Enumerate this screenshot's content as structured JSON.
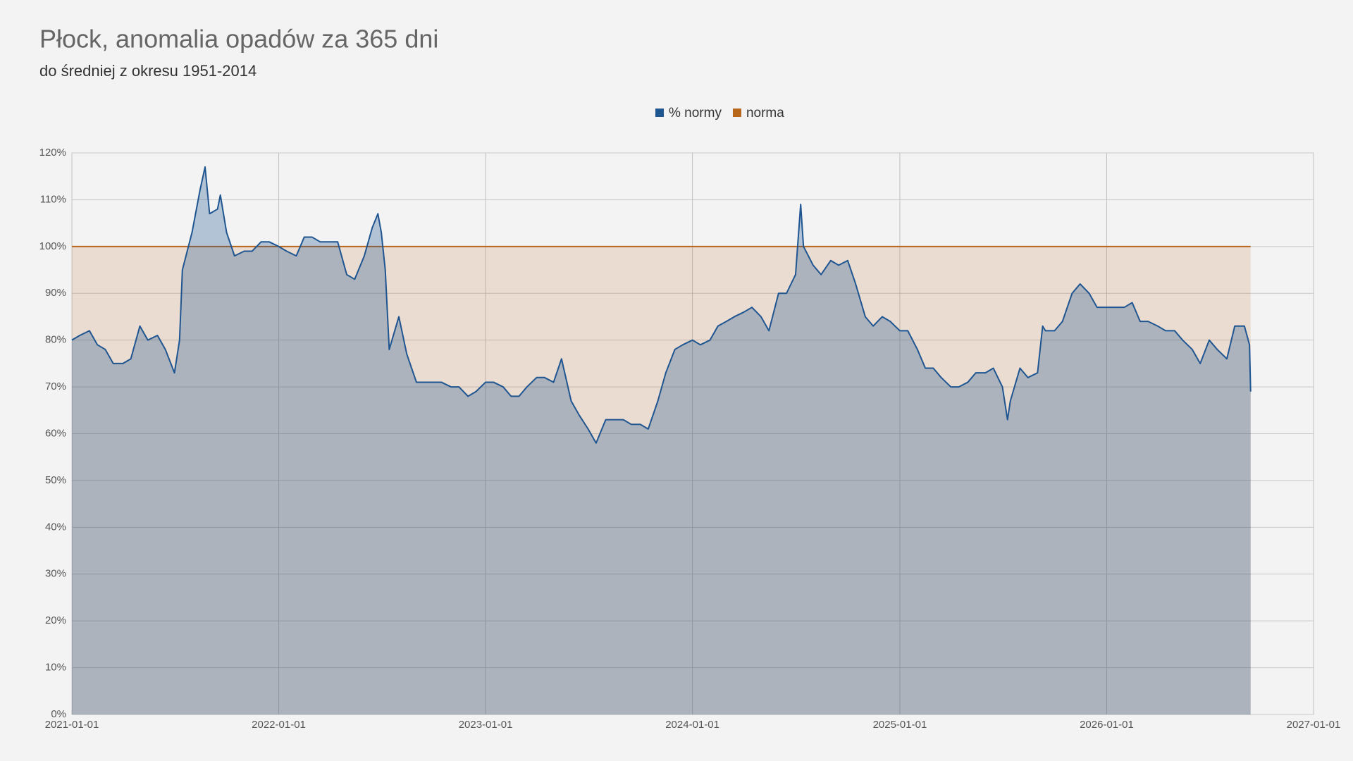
{
  "chart_data": {
    "type": "area",
    "title": "Płock, anomalia opadów za 365 dni",
    "subtitle": "do średniej z okresu 1951-2014",
    "legend": "top",
    "grid": true,
    "xlim": [
      "2021-01-01",
      "2027-01-01"
    ],
    "xticks": [
      "2021-01-01",
      "2022-01-01",
      "2023-01-01",
      "2024-01-01",
      "2025-01-01",
      "2026-01-01",
      "2027-01-01"
    ],
    "ylim": [
      0,
      120
    ],
    "yticks": [
      {
        "value": 0,
        "label": "0%"
      },
      {
        "value": 10,
        "label": "10%"
      },
      {
        "value": 20,
        "label": "20%"
      },
      {
        "value": 30,
        "label": "30%"
      },
      {
        "value": 40,
        "label": "40%"
      },
      {
        "value": 50,
        "label": "50%"
      },
      {
        "value": 60,
        "label": "60%"
      },
      {
        "value": 70,
        "label": "70%"
      },
      {
        "value": 80,
        "label": "80%"
      },
      {
        "value": 90,
        "label": "90%"
      },
      {
        "value": 100,
        "label": "100%"
      },
      {
        "value": 110,
        "label": "110%"
      },
      {
        "value": 120,
        "label": "120%"
      }
    ],
    "series": [
      {
        "name": "norma",
        "color": "#b8661a",
        "x": [
          "2021-01-01",
          "2026-09-12"
        ],
        "values": [
          100,
          100
        ]
      },
      {
        "name": "% normy",
        "color": "#1f5591",
        "x": [
          "2021-01-01",
          "2021-01-15",
          "2021-02-01",
          "2021-02-15",
          "2021-03-01",
          "2021-03-15",
          "2021-04-01",
          "2021-04-15",
          "2021-05-01",
          "2021-05-15",
          "2021-06-01",
          "2021-06-15",
          "2021-07-01",
          "2021-07-10",
          "2021-07-15",
          "2021-08-01",
          "2021-08-15",
          "2021-08-24",
          "2021-09-01",
          "2021-09-15",
          "2021-09-20",
          "2021-10-01",
          "2021-10-15",
          "2021-11-01",
          "2021-11-15",
          "2021-12-01",
          "2021-12-15",
          "2022-01-01",
          "2022-01-15",
          "2022-02-01",
          "2022-02-15",
          "2022-03-01",
          "2022-03-15",
          "2022-04-01",
          "2022-04-15",
          "2022-05-01",
          "2022-05-15",
          "2022-06-01",
          "2022-06-15",
          "2022-06-25",
          "2022-07-01",
          "2022-07-08",
          "2022-07-15",
          "2022-08-01",
          "2022-08-15",
          "2022-09-01",
          "2022-09-15",
          "2022-10-01",
          "2022-10-15",
          "2022-11-01",
          "2022-11-15",
          "2022-12-01",
          "2022-12-15",
          "2023-01-01",
          "2023-01-15",
          "2023-02-01",
          "2023-02-15",
          "2023-03-01",
          "2023-03-15",
          "2023-04-01",
          "2023-04-15",
          "2023-05-01",
          "2023-05-15",
          "2023-06-01",
          "2023-06-15",
          "2023-07-01",
          "2023-07-15",
          "2023-08-01",
          "2023-08-15",
          "2023-09-01",
          "2023-09-15",
          "2023-10-01",
          "2023-10-15",
          "2023-11-01",
          "2023-11-15",
          "2023-12-01",
          "2023-12-15",
          "2024-01-01",
          "2024-01-15",
          "2024-02-01",
          "2024-02-15",
          "2024-03-01",
          "2024-03-15",
          "2024-04-01",
          "2024-04-15",
          "2024-05-01",
          "2024-05-15",
          "2024-06-01",
          "2024-06-15",
          "2024-07-01",
          "2024-07-10",
          "2024-07-15",
          "2024-08-01",
          "2024-08-15",
          "2024-09-01",
          "2024-09-15",
          "2024-10-01",
          "2024-10-15",
          "2024-11-01",
          "2024-11-15",
          "2024-12-01",
          "2024-12-15",
          "2025-01-01",
          "2025-01-15",
          "2025-02-01",
          "2025-02-15",
          "2025-03-01",
          "2025-03-15",
          "2025-04-01",
          "2025-04-15",
          "2025-05-01",
          "2025-05-15",
          "2025-06-01",
          "2025-06-15",
          "2025-07-01",
          "2025-07-10",
          "2025-07-15",
          "2025-08-01",
          "2025-08-15",
          "2025-09-01",
          "2025-09-10",
          "2025-09-15",
          "2025-10-01",
          "2025-10-15",
          "2025-11-01",
          "2025-11-15",
          "2025-12-01",
          "2025-12-15",
          "2026-01-01",
          "2026-01-15",
          "2026-02-01",
          "2026-02-15",
          "2026-03-01",
          "2026-03-15",
          "2026-04-01",
          "2026-04-15",
          "2026-05-01",
          "2026-05-15",
          "2026-06-01",
          "2026-06-15",
          "2026-07-01",
          "2026-07-15",
          "2026-08-01",
          "2026-08-15",
          "2026-09-01",
          "2026-09-10",
          "2026-09-12"
        ],
        "values": [
          80,
          81,
          82,
          79,
          78,
          75,
          75,
          76,
          83,
          80,
          81,
          78,
          73,
          80,
          95,
          103,
          112,
          117,
          107,
          108,
          111,
          103,
          98,
          99,
          99,
          101,
          101,
          100,
          99,
          98,
          102,
          102,
          101,
          101,
          101,
          94,
          93,
          98,
          104,
          107,
          103,
          95,
          78,
          85,
          77,
          71,
          71,
          71,
          71,
          70,
          70,
          68,
          69,
          71,
          71,
          70,
          68,
          68,
          70,
          72,
          72,
          71,
          76,
          67,
          64,
          61,
          58,
          63,
          63,
          63,
          62,
          62,
          61,
          67,
          73,
          78,
          79,
          80,
          79,
          80,
          83,
          84,
          85,
          86,
          87,
          85,
          82,
          90,
          90,
          94,
          109,
          100,
          96,
          94,
          97,
          96,
          97,
          92,
          85,
          83,
          85,
          84,
          82,
          82,
          78,
          74,
          74,
          72,
          70,
          70,
          71,
          73,
          73,
          74,
          70,
          63,
          67,
          74,
          72,
          73,
          83,
          82,
          82,
          84,
          90,
          92,
          90,
          87,
          87,
          87,
          87,
          88,
          84,
          84,
          83,
          82,
          82,
          80,
          78,
          75,
          80,
          78,
          76,
          83,
          83,
          79,
          69
        ]
      }
    ]
  }
}
